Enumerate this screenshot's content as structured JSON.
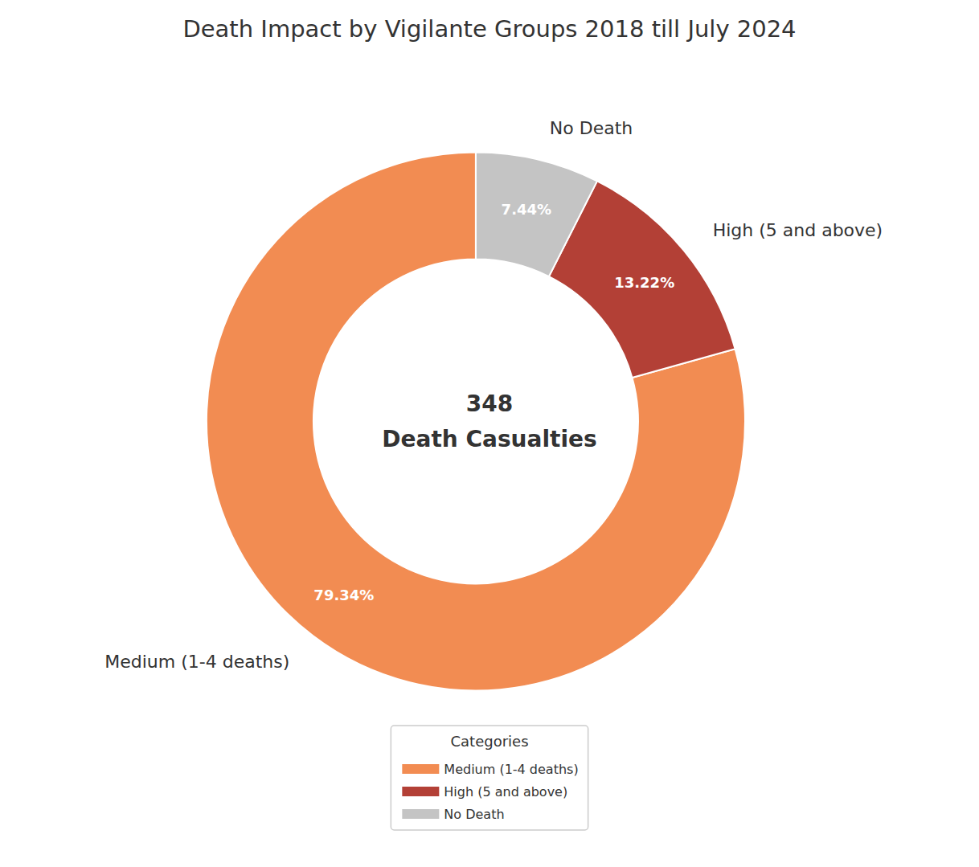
{
  "chart_data": {
    "type": "pie",
    "title": "Death Impact by Vigilante Groups 2018 till July 2024",
    "categories": [
      "Medium (1-4 deaths)",
      "High (5 and above)",
      "No Death"
    ],
    "values": [
      79.34,
      13.22,
      7.44
    ],
    "value_labels": [
      "79.34%",
      "13.22%",
      "7.44%"
    ],
    "colors": [
      "#f28c52",
      "#b34036",
      "#c4c4c4"
    ],
    "data_labels": true,
    "annotation": "348\nDeath Casualties",
    "legend": "bottom",
    "legend_title": "Categories"
  }
}
